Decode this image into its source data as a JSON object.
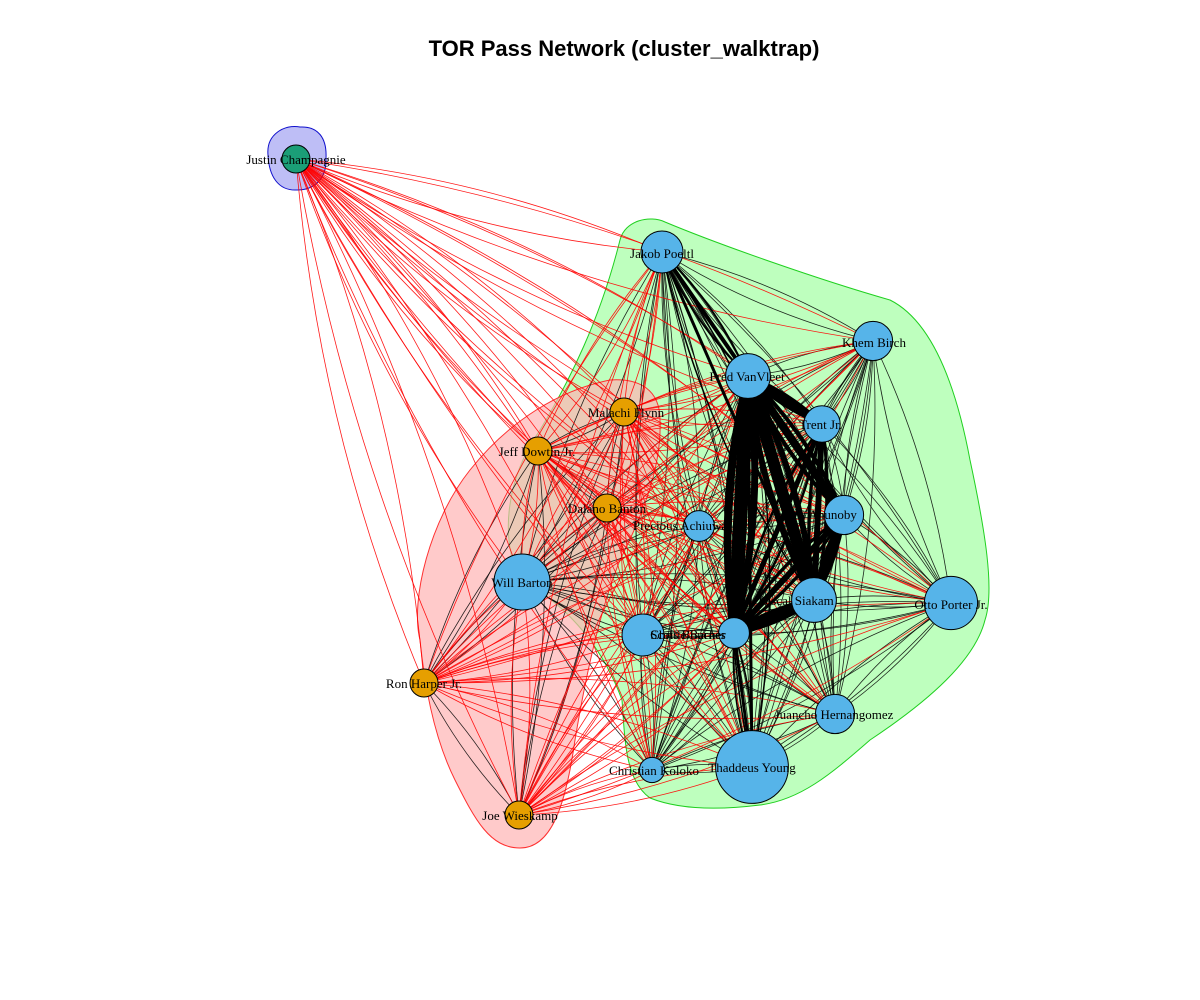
{
  "title": "TOR Pass Network (cluster_walktrap)",
  "colors": {
    "cluster_1_hull": "#b3b3f5",
    "cluster_1_border": "#1010cc",
    "cluster_2_hull": "#ffb3b3",
    "cluster_2_border": "#ff3030",
    "cluster_3_hull": "#b3ffb3",
    "cluster_3_border": "#20d020",
    "node_cluster_1": "#1b9e77",
    "node_cluster_2": "#e69f00",
    "node_cluster_3": "#56b4e9",
    "edge_within": "#000000",
    "edge_between": "#ff0000"
  },
  "clusters": [
    {
      "id": 1,
      "members": [
        "Justin Champagnie"
      ]
    },
    {
      "id": 2,
      "members": [
        "Malachi Flynn",
        "Jeff Dowtin Jr.",
        "Dalano Banton",
        "Ron Harper Jr.",
        "Joe Wieskamp"
      ]
    },
    {
      "id": 3,
      "members": [
        "Jakob Poeltl",
        "Khem Birch",
        "Fred VanVleet",
        "Gary Trent Jr.",
        "OG Anunoby",
        "Precious Achiuwa",
        "Will Barton",
        "Pascal Siakam",
        "Otto Porter Jr.",
        "Chris Boucher",
        "Scottie Barnes",
        "Juancho Hernangomez",
        "Christian Koloko",
        "Thaddeus Young"
      ]
    }
  ],
  "nodes": [
    {
      "id": "champagnie",
      "label": "Justin Champagnie",
      "cluster": 1,
      "size": 1.0
    },
    {
      "id": "flynn",
      "label": "Malachi Flynn",
      "cluster": 2,
      "size": 1.0
    },
    {
      "id": "dowtin",
      "label": "Jeff Dowtin Jr.",
      "cluster": 2,
      "size": 1.0
    },
    {
      "id": "banton",
      "label": "Dalano Banton",
      "cluster": 2,
      "size": 1.0
    },
    {
      "id": "harper",
      "label": "Ron Harper Jr.",
      "cluster": 2,
      "size": 1.0
    },
    {
      "id": "wieskamp",
      "label": "Joe Wieskamp",
      "cluster": 2,
      "size": 1.0
    },
    {
      "id": "poeltl",
      "label": "Jakob Poeltl",
      "cluster": 3,
      "size": 1.5
    },
    {
      "id": "birch",
      "label": "Khem Birch",
      "cluster": 3,
      "size": 1.4
    },
    {
      "id": "vanvleet",
      "label": "Fred VanVleet",
      "cluster": 3,
      "size": 1.6
    },
    {
      "id": "trent",
      "label": "Gary Trent Jr.",
      "cluster": 3,
      "size": 1.3
    },
    {
      "id": "anunoby",
      "label": "OG Anunoby",
      "cluster": 3,
      "size": 1.4
    },
    {
      "id": "achiuwa",
      "label": "Precious Achiuwa",
      "cluster": 3,
      "size": 1.1
    },
    {
      "id": "barton",
      "label": "Will Barton",
      "cluster": 3,
      "size": 2.0
    },
    {
      "id": "siakam",
      "label": "Pascal Siakam",
      "cluster": 3,
      "size": 1.6
    },
    {
      "id": "porter",
      "label": "Otto Porter Jr.",
      "cluster": 3,
      "size": 1.9
    },
    {
      "id": "boucher",
      "label": "Chris Boucher",
      "cluster": 3,
      "size": 1.5
    },
    {
      "id": "barnes",
      "label": "Scottie Barnes",
      "cluster": 3,
      "size": 1.1
    },
    {
      "id": "hernangomez",
      "label": "Juancho Hernangomez",
      "cluster": 3,
      "size": 1.4
    },
    {
      "id": "koloko",
      "label": "Christian Koloko",
      "cluster": 3,
      "size": 0.9
    },
    {
      "id": "young",
      "label": "Thaddeus Young",
      "cluster": 3,
      "size": 2.6
    }
  ],
  "heavy_edges": [
    {
      "from": "vanvleet",
      "to": "barnes",
      "weight": 14
    },
    {
      "from": "vanvleet",
      "to": "siakam",
      "weight": 12
    },
    {
      "from": "siakam",
      "to": "barnes",
      "weight": 11
    },
    {
      "from": "vanvleet",
      "to": "anunoby",
      "weight": 8
    },
    {
      "from": "vanvleet",
      "to": "trent",
      "weight": 7
    },
    {
      "from": "siakam",
      "to": "anunoby",
      "weight": 7
    },
    {
      "from": "barnes",
      "to": "anunoby",
      "weight": 6
    },
    {
      "from": "trent",
      "to": "siakam",
      "weight": 6
    },
    {
      "from": "barnes",
      "to": "trent",
      "weight": 5
    },
    {
      "from": "poeltl",
      "to": "vanvleet",
      "weight": 4
    },
    {
      "from": "poeltl",
      "to": "siakam",
      "weight": 3
    },
    {
      "from": "vanvleet",
      "to": "young",
      "weight": 3
    },
    {
      "from": "barnes",
      "to": "young",
      "weight": 3
    }
  ]
}
